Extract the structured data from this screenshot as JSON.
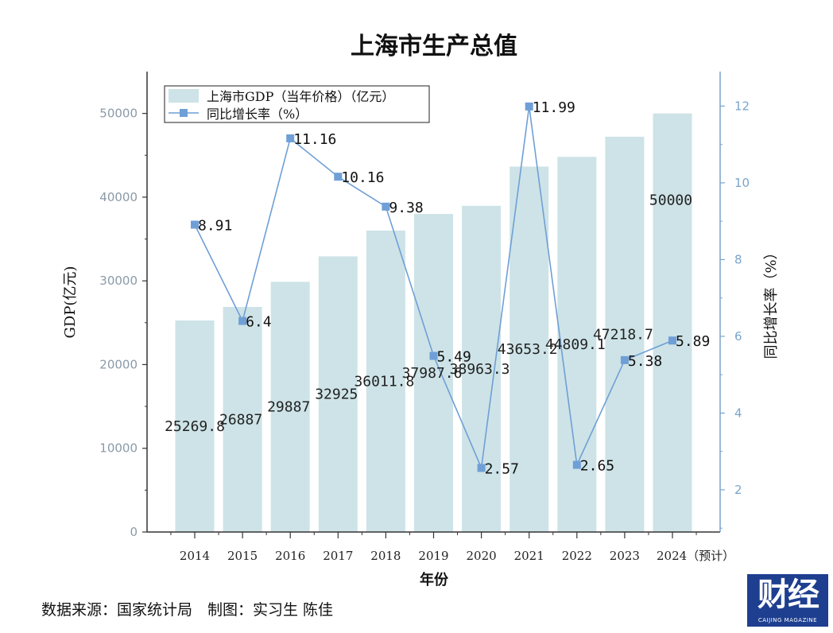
{
  "source_text": "数据来源：国家统计局　制图：实习生 陈佳",
  "logo": {
    "main": "财经",
    "sub": "CAIJING MAGAZINE"
  },
  "chart_data": {
    "type": "bar",
    "title": "上海市生产总值",
    "xlabel": "年份",
    "ylabel": "GDP(亿元)",
    "y2label": "同比增长率（%）",
    "categories": [
      "2014",
      "2015",
      "2016",
      "2017",
      "2018",
      "2019",
      "2020",
      "2021",
      "2022",
      "2023",
      "2024（预计）"
    ],
    "ylim": [
      0,
      55000
    ],
    "y2lim": [
      0.9,
      12.9
    ],
    "yticks": [
      0,
      10000,
      20000,
      30000,
      40000,
      50000
    ],
    "y2ticks": [
      2,
      4,
      6,
      8,
      10,
      12
    ],
    "legend_position": "top-left",
    "colors": {
      "bar": "#cde3e7",
      "line": "#6f9fd6",
      "marker": "#6f9fd6",
      "right_axis": "#7aa4cc"
    },
    "series": [
      {
        "name": "上海市GDP（当年价格）（亿元）",
        "type": "bar",
        "axis": "left",
        "values": [
          25269.8,
          26887,
          29887,
          32925,
          36011.8,
          37987.6,
          38963.3,
          43653.2,
          44809.1,
          47218.7,
          50000
        ],
        "labels": [
          "25269.8",
          "26887",
          "29887",
          "32925",
          "36011.8",
          "37987.6",
          "38963.3",
          "43653.2",
          "44809.1",
          "47218.7",
          "50000"
        ]
      },
      {
        "name": "同比增长率（%）",
        "type": "line",
        "axis": "right",
        "values": [
          8.91,
          6.4,
          11.16,
          10.16,
          9.38,
          5.49,
          2.57,
          11.99,
          2.65,
          5.38,
          5.89
        ],
        "labels": [
          "8.91",
          "6.4",
          "11.16",
          "10.16",
          "9.38",
          "5.49",
          "2.57",
          "11.99",
          "2.65",
          "5.38",
          "5.89"
        ]
      }
    ]
  }
}
